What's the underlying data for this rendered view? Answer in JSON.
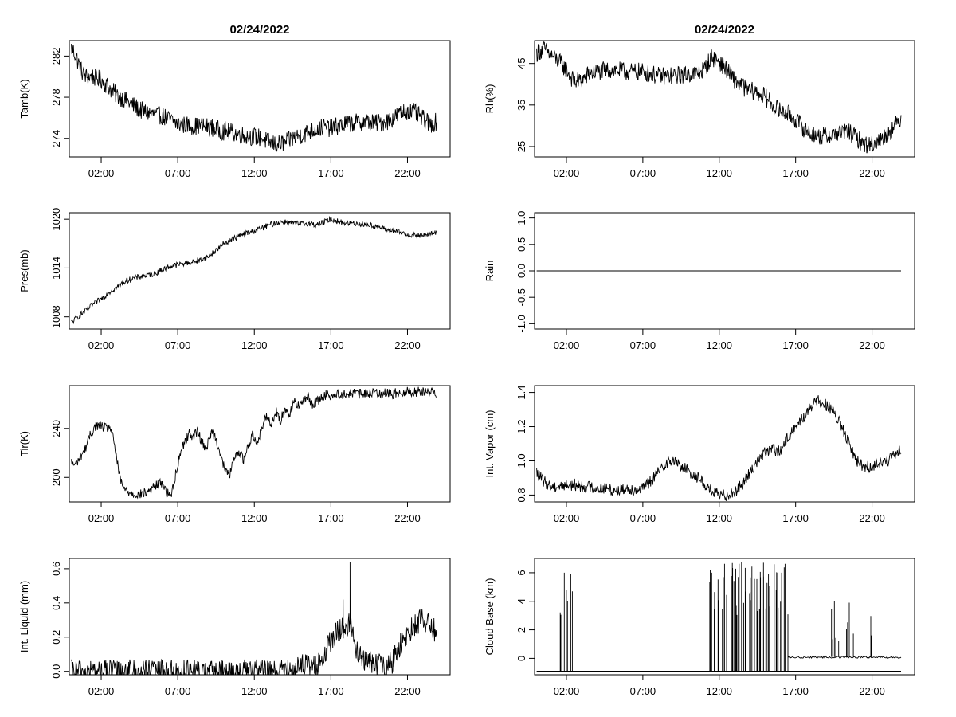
{
  "figure": {
    "date_title": "02/24/2022",
    "background": "#ffffff",
    "line_color": "#000000"
  },
  "x_ticks": [
    "02:00",
    "07:00",
    "12:00",
    "17:00",
    "22:00"
  ],
  "chart_data": [
    {
      "type": "line",
      "title": "02/24/2022",
      "ylabel": "Tamb(K)",
      "xlim": [
        0,
        24
      ],
      "ylim": [
        272.2,
        283.5
      ],
      "yticks": [
        "274",
        "278",
        "282"
      ],
      "series": [
        {
          "x": [
            0.05,
            0.3,
            0.7,
            1.0,
            1.4,
            2.0,
            2.5,
            3.0,
            3.5,
            4.0,
            4.5,
            5.0,
            5.5,
            6.0,
            6.5,
            7.0,
            7.5,
            8.0,
            8.5,
            9.0,
            9.5,
            10.0,
            10.5,
            11.0,
            11.5,
            12.0,
            12.5,
            13.0,
            13.5,
            14.0,
            14.5,
            15.0,
            15.5,
            16.0,
            16.5,
            17.0,
            17.5,
            18.0,
            18.5,
            19.0,
            19.5,
            20.0,
            20.5,
            21.0,
            21.5,
            22.0,
            22.5,
            23.0,
            23.5,
            23.9
          ],
          "y": [
            282.8,
            282.2,
            280.6,
            280.0,
            280.0,
            279.7,
            279.0,
            278.2,
            277.8,
            277.3,
            276.8,
            276.5,
            276.3,
            276.2,
            275.8,
            275.4,
            275.3,
            275.2,
            275.2,
            275.1,
            274.9,
            274.7,
            274.6,
            274.4,
            274.2,
            274.2,
            274.0,
            273.6,
            273.4,
            273.6,
            274.0,
            274.3,
            274.6,
            274.9,
            275.1,
            275.0,
            275.2,
            275.4,
            275.5,
            275.6,
            275.6,
            275.5,
            275.6,
            275.9,
            276.4,
            276.7,
            276.5,
            275.9,
            275.4,
            275.6
          ],
          "noise": 0.9
        }
      ]
    },
    {
      "type": "line",
      "title": "02/24/2022",
      "ylabel": "Rh(%)",
      "xlim": [
        0,
        24
      ],
      "ylim": [
        22.5,
        50.5
      ],
      "yticks": [
        "25",
        "35",
        "45"
      ],
      "series": [
        {
          "x": [
            0.05,
            0.5,
            1.0,
            1.5,
            2.0,
            2.5,
            3.0,
            3.5,
            4.0,
            5.0,
            6.0,
            7.0,
            8.0,
            9.0,
            10.0,
            10.5,
            11.0,
            11.5,
            12.0,
            12.5,
            13.0,
            13.5,
            14.0,
            14.5,
            15.0,
            15.5,
            16.0,
            16.5,
            17.0,
            17.5,
            18.0,
            18.5,
            19.0,
            19.5,
            20.0,
            20.5,
            21.0,
            21.5,
            22.0,
            22.5,
            23.0,
            23.5,
            23.9
          ],
          "y": [
            47.5,
            48.5,
            47.0,
            45.5,
            43.5,
            40.5,
            41.0,
            42.5,
            43.0,
            43.5,
            43.0,
            43.0,
            42.0,
            42.0,
            42.5,
            42.5,
            43.5,
            46.5,
            45.5,
            43.5,
            41.0,
            39.5,
            38.5,
            38.0,
            37.0,
            35.0,
            33.5,
            33.0,
            31.5,
            29.5,
            28.0,
            27.5,
            27.5,
            28.0,
            28.5,
            28.5,
            27.0,
            25.5,
            25.5,
            26.5,
            28.0,
            30.0,
            32.0
          ],
          "noise": 2.2
        }
      ]
    },
    {
      "type": "line",
      "ylabel": "Pres(mb)",
      "xlim": [
        0,
        24
      ],
      "ylim": [
        1006.5,
        1020.8
      ],
      "yticks": [
        "1008",
        "1014",
        "1020"
      ],
      "series": [
        {
          "x": [
            0.05,
            0.5,
            1.0,
            1.5,
            2.0,
            2.5,
            3.0,
            3.5,
            4.0,
            4.5,
            5.0,
            5.5,
            6.0,
            6.5,
            7.0,
            7.5,
            8.0,
            8.5,
            9.0,
            9.5,
            10.0,
            10.5,
            11.0,
            11.5,
            12.0,
            12.5,
            13.0,
            13.5,
            14.0,
            14.5,
            15.0,
            15.5,
            16.0,
            16.5,
            17.0,
            17.5,
            18.0,
            18.5,
            19.0,
            19.5,
            20.0,
            20.5,
            21.0,
            21.5,
            22.0,
            22.5,
            23.0,
            23.5,
            23.9
          ],
          "y": [
            1007.3,
            1008.0,
            1008.8,
            1009.6,
            1010.2,
            1011.0,
            1011.6,
            1012.3,
            1012.7,
            1012.9,
            1013.1,
            1013.3,
            1013.8,
            1014.2,
            1014.4,
            1014.6,
            1014.7,
            1015.0,
            1015.4,
            1016.2,
            1017.0,
            1017.5,
            1017.9,
            1018.3,
            1018.6,
            1018.9,
            1019.3,
            1019.6,
            1019.7,
            1019.5,
            1019.4,
            1019.5,
            1019.3,
            1019.6,
            1020.0,
            1019.7,
            1019.5,
            1019.5,
            1019.4,
            1019.3,
            1019.1,
            1018.8,
            1018.6,
            1018.4,
            1018.1,
            1018.0,
            1018.0,
            1018.2,
            1018.4
          ],
          "noise": 0.35
        }
      ]
    },
    {
      "type": "line",
      "ylabel": "Rain",
      "xlim": [
        0,
        24
      ],
      "ylim": [
        -1.1,
        1.1
      ],
      "yticks": [
        "-1.0",
        "-0.5",
        "0.0",
        "0.5",
        "1.0"
      ],
      "series": [
        {
          "x": [
            0.05,
            23.9
          ],
          "y": [
            0.0,
            0.0
          ],
          "noise": 0
        }
      ]
    },
    {
      "type": "line",
      "ylabel": "Tir(K)",
      "xlim": [
        0,
        24
      ],
      "ylim": [
        180,
        275
      ],
      "yticks": [
        "200",
        "240"
      ],
      "series": [
        {
          "x": [
            0.05,
            0.3,
            0.6,
            1.0,
            1.3,
            1.6,
            2.0,
            2.3,
            2.6,
            2.9,
            3.2,
            3.5,
            4.0,
            4.5,
            5.0,
            5.5,
            6.0,
            6.3,
            6.6,
            6.9,
            7.2,
            7.5,
            7.8,
            8.0,
            8.3,
            8.6,
            8.9,
            9.2,
            9.5,
            9.8,
            10.1,
            10.4,
            10.7,
            11.0,
            11.3,
            11.6,
            11.9,
            12.2,
            12.5,
            12.8,
            13.1,
            13.4,
            13.7,
            14.0,
            14.3,
            14.6,
            14.9,
            15.2,
            15.5,
            15.8,
            16.1,
            16.4,
            16.7,
            17.0,
            17.5,
            18.0,
            18.5,
            19.0,
            19.5,
            20.0,
            20.5,
            21.0,
            21.5,
            22.0,
            22.5,
            23.0,
            23.5,
            23.9
          ],
          "y": [
            212,
            210,
            216,
            225,
            235,
            242,
            242,
            240,
            241,
            225,
            200,
            190,
            187,
            186,
            188,
            193,
            196,
            187,
            186,
            205,
            222,
            230,
            237,
            233,
            238,
            228,
            224,
            238,
            232,
            218,
            205,
            203,
            215,
            222,
            214,
            226,
            235,
            229,
            240,
            252,
            242,
            255,
            245,
            258,
            250,
            264,
            258,
            262,
            266,
            260,
            262,
            265,
            268,
            267,
            268,
            268,
            269,
            268,
            269,
            269,
            269,
            268,
            270,
            270,
            270,
            270,
            270,
            269
          ],
          "noise": 4.0
        }
      ]
    },
    {
      "type": "line",
      "ylabel": "Int. Vapor (cm)",
      "xlim": [
        0,
        24
      ],
      "ylim": [
        0.76,
        1.44
      ],
      "yticks": [
        "0.8",
        "1.0",
        "1.2",
        "1.4"
      ],
      "series": [
        {
          "x": [
            0.05,
            0.5,
            1.0,
            1.5,
            2.0,
            2.5,
            3.0,
            3.5,
            4.0,
            4.5,
            5.0,
            5.5,
            6.0,
            6.5,
            7.0,
            7.5,
            8.0,
            8.5,
            9.0,
            9.5,
            10.0,
            10.5,
            11.0,
            11.5,
            12.0,
            12.5,
            13.0,
            13.5,
            14.0,
            14.5,
            15.0,
            15.5,
            16.0,
            16.5,
            17.0,
            17.5,
            18.0,
            18.5,
            19.0,
            19.5,
            20.0,
            20.5,
            21.0,
            21.5,
            22.0,
            22.5,
            23.0,
            23.5,
            23.9
          ],
          "y": [
            0.93,
            0.88,
            0.85,
            0.85,
            0.86,
            0.86,
            0.85,
            0.85,
            0.84,
            0.84,
            0.83,
            0.83,
            0.84,
            0.83,
            0.84,
            0.88,
            0.93,
            0.99,
            1.0,
            0.97,
            0.94,
            0.91,
            0.87,
            0.82,
            0.8,
            0.8,
            0.82,
            0.86,
            0.93,
            1.0,
            1.05,
            1.07,
            1.05,
            1.14,
            1.2,
            1.25,
            1.32,
            1.35,
            1.33,
            1.28,
            1.2,
            1.1,
            1.0,
            0.96,
            0.97,
            0.99,
            1.0,
            1.03,
            1.06
          ],
          "noise": 0.035
        }
      ]
    },
    {
      "type": "line",
      "ylabel": "Int. Liquid (mm)",
      "xlim": [
        0,
        24
      ],
      "ylim": [
        -0.02,
        0.66
      ],
      "yticks": [
        "0.0",
        "0.2",
        "0.4",
        "0.6"
      ],
      "series": [
        {
          "x": [
            0.05,
            14.6,
            15.0,
            15.5,
            16.0,
            16.5,
            17.0,
            17.5,
            18.0,
            18.3,
            18.6,
            19.0,
            19.5,
            20.0,
            20.5,
            21.0,
            21.5,
            22.0,
            22.5,
            23.0,
            23.5,
            23.9
          ],
          "y": [
            0.0,
            0.0,
            0.06,
            0.03,
            0.02,
            0.08,
            0.18,
            0.24,
            0.25,
            0.3,
            0.12,
            0.08,
            0.05,
            0.04,
            0.02,
            0.05,
            0.15,
            0.22,
            0.28,
            0.3,
            0.28,
            0.22
          ],
          "noise": 0.07,
          "spikes": [
            {
              "x": 18.25,
              "y": 0.64
            },
            {
              "x": 17.8,
              "y": 0.42
            }
          ]
        }
      ]
    },
    {
      "type": "line",
      "ylabel": "Cloud Base (km)",
      "xlim": [
        0,
        24
      ],
      "ylim": [
        -1.15,
        7.0
      ],
      "yticks": [
        "0",
        "2",
        "4",
        "6"
      ],
      "series": [
        {
          "x": [
            0.05,
            23.9
          ],
          "y": [
            -0.9,
            -0.9
          ],
          "noise": 0
        }
      ]
    }
  ]
}
